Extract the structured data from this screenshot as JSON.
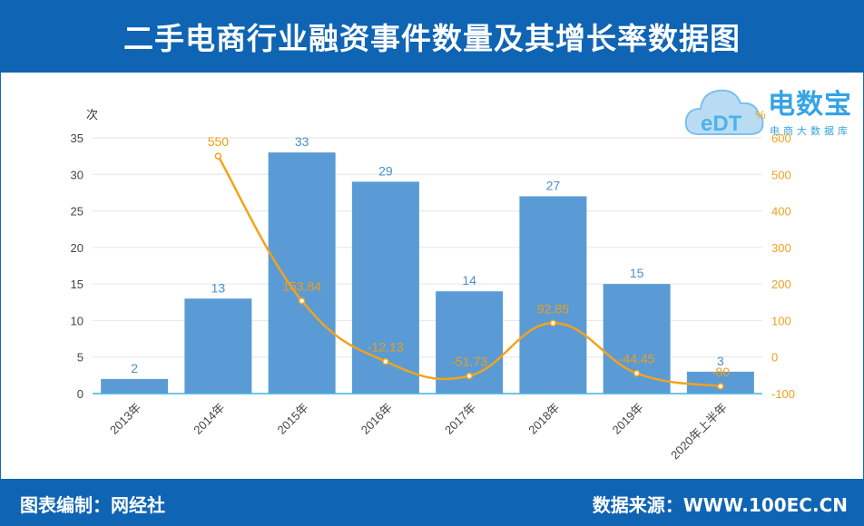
{
  "header": {
    "title": "二手电商行业融资事件数量及其增长率数据图"
  },
  "footer": {
    "left": "图表编制：网经社",
    "right": "数据来源：WWW.100EC.CN"
  },
  "logo": {
    "mark": "eDT",
    "brand": "电数宝",
    "sub": "电商大数据库"
  },
  "colors": {
    "header_bg": "#0f64b4",
    "bar": "#5b9bd5",
    "line": "#f4a21c",
    "right_axis": "#f0a11e"
  },
  "chart_data": {
    "type": "bar",
    "categories": [
      "2013年",
      "2014年",
      "2015年",
      "2016年",
      "2017年",
      "2018年",
      "2019年",
      "2020年上半年"
    ],
    "ylabel": "次",
    "ylabel_right": "%",
    "ylim": [
      0,
      35
    ],
    "ylim_right": [
      -100,
      600
    ],
    "yticks": [
      "0",
      "5",
      "10",
      "15",
      "20",
      "25",
      "30",
      "35"
    ],
    "yticks_right": [
      "-100",
      "0",
      "100",
      "200",
      "300",
      "400",
      "500",
      "600"
    ],
    "grid": true,
    "series": [
      {
        "type": "bar",
        "values": [
          2,
          13,
          33,
          29,
          14,
          27,
          15,
          3
        ],
        "labels": [
          "2",
          "13",
          "33",
          "29",
          "14",
          "27",
          "15",
          "3"
        ]
      },
      {
        "type": "line",
        "axis": "right",
        "values": [
          null,
          550,
          153.84,
          -12.13,
          -51.73,
          92.85,
          -44.45,
          -80
        ],
        "labels": [
          "",
          "550",
          "153.84",
          "-12.13",
          "-51.73",
          "92.85",
          "-44.45",
          "-80"
        ]
      }
    ]
  }
}
